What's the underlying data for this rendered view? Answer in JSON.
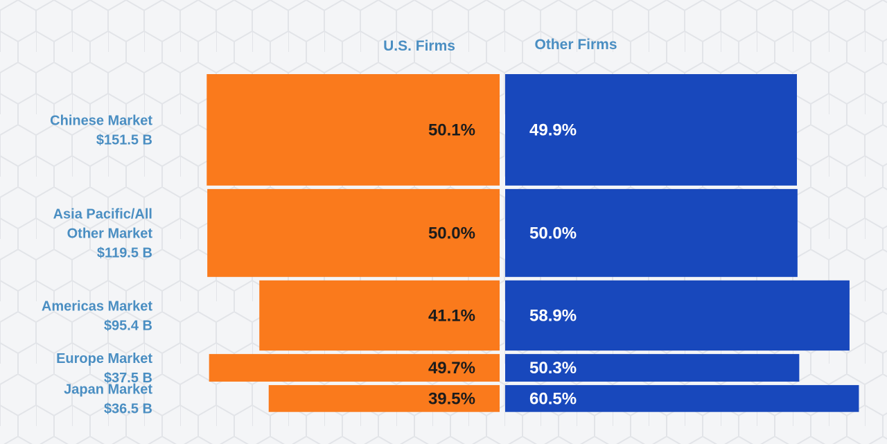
{
  "chart_data": {
    "type": "bar",
    "orientation": "diverging-horizontal",
    "title": "",
    "series": [
      {
        "name": "U.S. Firms",
        "values": [
          50.1,
          50.0,
          41.1,
          49.7,
          39.5
        ],
        "labels": [
          "50.1%",
          "50.0%",
          "41.1%",
          "49.7%",
          "39.5%"
        ]
      },
      {
        "name": "Other Firms",
        "values": [
          49.9,
          50.0,
          58.9,
          50.3,
          60.5
        ],
        "labels": [
          "49.9%",
          "50.0%",
          "58.9%",
          "50.3%",
          "60.5%"
        ]
      }
    ],
    "categories": [
      {
        "lines": [
          "Chinese Market",
          "$151.5 B"
        ],
        "market_size": 151.5
      },
      {
        "lines": [
          "Asia Pacific/All",
          "Other Market",
          "$119.5 B"
        ],
        "market_size": 119.5
      },
      {
        "lines": [
          "Americas Market",
          "$95.4 B"
        ],
        "market_size": 95.4
      },
      {
        "lines": [
          "Europe Market",
          "$37.5 B"
        ],
        "market_size": 37.5
      },
      {
        "lines": [
          "Japan Market",
          "$36.5 B"
        ],
        "market_size": 36.5
      }
    ],
    "unit": "%",
    "market_unit": "$ B",
    "legend": "top"
  },
  "colors": {
    "us_firms": "#fa7a1c",
    "other_firms": "#1848bc",
    "label_text": "#4a8ec2",
    "us_value_text": "#1c1c1c",
    "other_value_text": "#ffffff"
  }
}
